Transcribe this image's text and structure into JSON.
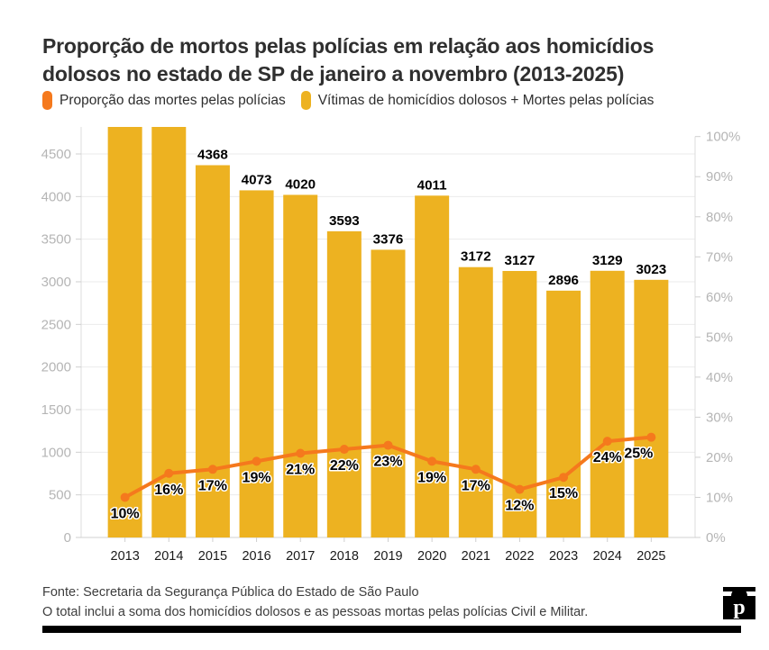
{
  "title": {
    "full": "Proporção de mortos pelas polícias em relação aos homicídios dolosos no estado de SP de janeiro a novembro (2013-2025)",
    "lines": [
      "Proporção de mortos pelas polícias em relação aos homicídios",
      "dolosos no estado de SP de janeiro a novembro (2013-2025)"
    ]
  },
  "legend": {
    "items": [
      {
        "label": "Proporção das mortes pelas polícias",
        "color": "#F5791D"
      },
      {
        "label": "Vítimas de homicídios dolosos + Mortes pelas polícias",
        "color": "#EDB221"
      }
    ],
    "position": "top"
  },
  "chart_data": {
    "type": "bar",
    "subtype": "bar+line combo, dual axis",
    "categories": [
      "2013",
      "2014",
      "2015",
      "2016",
      "2017",
      "2018",
      "2019",
      "2020",
      "2021",
      "2022",
      "2023",
      "2024",
      "2025"
    ],
    "series": [
      {
        "name": "Vítimas de homicídios dolosos + Mortes pelas polícias",
        "type": "bar",
        "axis": "left",
        "color": "#EDB221",
        "values": [
          null,
          null,
          4368,
          4073,
          4020,
          3593,
          3376,
          4011,
          3172,
          3127,
          2896,
          3129,
          3023
        ],
        "clipped": [
          true,
          true,
          false,
          false,
          false,
          false,
          false,
          false,
          false,
          false,
          false,
          false,
          false
        ],
        "note": "2013 and 2014 bars exceed the visible axis maximum and are clipped with no data label"
      },
      {
        "name": "Proporção das mortes pelas polícias",
        "type": "line",
        "axis": "right",
        "color": "#F5791D",
        "unit": "%",
        "values": [
          10,
          16,
          17,
          19,
          21,
          22,
          23,
          19,
          17,
          12,
          15,
          24,
          25
        ]
      }
    ],
    "left_axis": {
      "min": 0,
      "max": 4500,
      "tick_step": 500
    },
    "right_axis": {
      "min": 0,
      "max": 100,
      "tick_step": 10,
      "unit": "%"
    },
    "grid": "horizontal",
    "legend_position": "top"
  },
  "footer": {
    "source": "Fonte: Secretaria da Segurança Pública do Estado de São Paulo",
    "note": "O total inclui a soma dos homicídios dolosos e as pessoas mortas pelas polícias Civil e Militar."
  },
  "logo": {
    "letter": "p"
  },
  "colors": {
    "bar": "#EDB221",
    "line": "#F5791D",
    "axis_label": "#b5b5b5",
    "grid": "#ebebeb",
    "year_label": "#1a1a1a",
    "title": "#2f2f2f"
  }
}
